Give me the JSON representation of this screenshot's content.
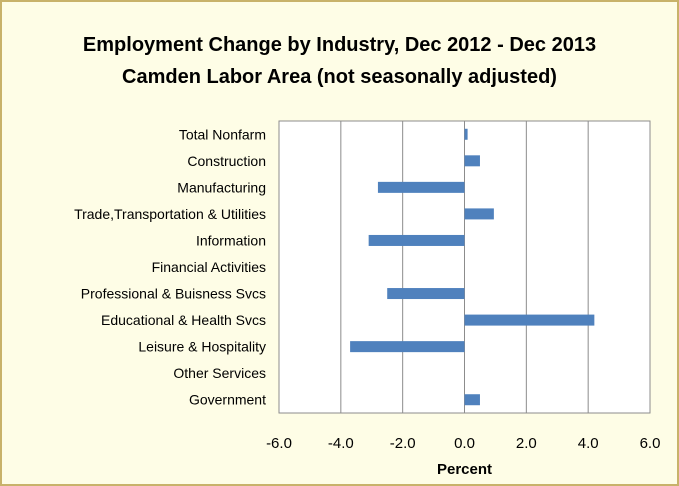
{
  "chart_data": {
    "type": "bar",
    "orientation": "horizontal",
    "title": "Employment Change by Industry, Dec 2012 - Dec 2013",
    "subtitle": "Camden Labor Area (not seasonally adjusted)",
    "xlabel": "Percent",
    "ylabel": "",
    "categories": [
      "Total Nonfarm",
      "Construction",
      "Manufacturing",
      "Trade,Transportation & Utilities",
      "Information",
      "Financial Activities",
      "Professional & Buisness Svcs",
      "Educational & Health Svcs",
      "Leisure & Hospitality",
      "Other Services",
      "Government"
    ],
    "values": [
      0.1,
      0.5,
      -2.8,
      0.95,
      -3.1,
      0.0,
      -2.5,
      4.2,
      -3.7,
      0.0,
      0.5
    ],
    "xlim": [
      -6.0,
      6.0
    ],
    "xticks": [
      "-6.0",
      "-4.0",
      "-2.0",
      "0.0",
      "2.0",
      "4.0",
      "6.0"
    ],
    "grid": "vertical gridlines",
    "legend": "none",
    "bar_color": "#4f81bd",
    "background_color": "#fefde6",
    "border_color": "#c8b26a"
  }
}
